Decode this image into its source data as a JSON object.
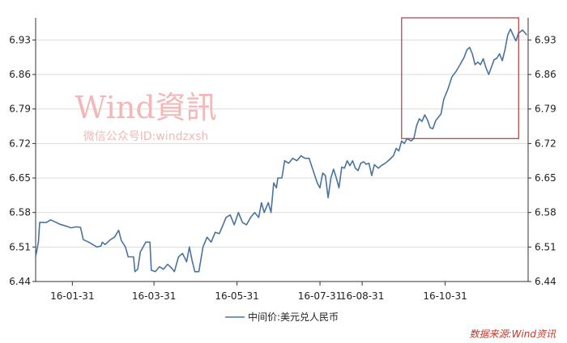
{
  "chart_data": {
    "type": "line",
    "series": [
      {
        "name": "中间价:美元兑人民币",
        "color": "#4a73a0",
        "points": [
          [
            "2016-01-04",
            6.49
          ],
          [
            "2016-01-06",
            6.52
          ],
          [
            "2016-01-07",
            6.56
          ],
          [
            "2016-01-12",
            6.56
          ],
          [
            "2016-01-15",
            6.565
          ],
          [
            "2016-01-19",
            6.56
          ],
          [
            "2016-01-22",
            6.556
          ],
          [
            "2016-01-27",
            6.552
          ],
          [
            "2016-01-30",
            6.549
          ],
          [
            "2016-02-03",
            6.551
          ],
          [
            "2016-02-06",
            6.55
          ],
          [
            "2016-02-08",
            6.525
          ],
          [
            "2016-02-12",
            6.52
          ],
          [
            "2016-02-18",
            6.51
          ],
          [
            "2016-02-21",
            6.512
          ],
          [
            "2016-02-22",
            6.52
          ],
          [
            "2016-02-24",
            6.515
          ],
          [
            "2016-02-28",
            6.525
          ],
          [
            "2016-03-02",
            6.53
          ],
          [
            "2016-03-05",
            6.544
          ],
          [
            "2016-03-07",
            6.523
          ],
          [
            "2016-03-10",
            6.51
          ],
          [
            "2016-03-12",
            6.49
          ],
          [
            "2016-03-16",
            6.49
          ],
          [
            "2016-03-17",
            6.46
          ],
          [
            "2016-03-19",
            6.465
          ],
          [
            "2016-03-21",
            6.5
          ],
          [
            "2016-03-25",
            6.52
          ],
          [
            "2016-03-28",
            6.52
          ],
          [
            "2016-03-29",
            6.463
          ],
          [
            "2016-04-01",
            6.46
          ],
          [
            "2016-04-04",
            6.47
          ],
          [
            "2016-04-07",
            6.465
          ],
          [
            "2016-04-10",
            6.475
          ],
          [
            "2016-04-13",
            6.467
          ],
          [
            "2016-04-15",
            6.46
          ],
          [
            "2016-04-18",
            6.49
          ],
          [
            "2016-04-21",
            6.497
          ],
          [
            "2016-04-24",
            6.48
          ],
          [
            "2016-04-26",
            6.51
          ],
          [
            "2016-04-28",
            6.483
          ],
          [
            "2016-04-30",
            6.46
          ],
          [
            "2016-05-03",
            6.46
          ],
          [
            "2016-05-06",
            6.51
          ],
          [
            "2016-05-09",
            6.53
          ],
          [
            "2016-05-12",
            6.52
          ],
          [
            "2016-05-15",
            6.54
          ],
          [
            "2016-05-18",
            6.537
          ],
          [
            "2016-05-20",
            6.55
          ],
          [
            "2016-05-23",
            6.57
          ],
          [
            "2016-05-26",
            6.575
          ],
          [
            "2016-05-29",
            6.555
          ],
          [
            "2016-06-01",
            6.58
          ],
          [
            "2016-06-04",
            6.56
          ],
          [
            "2016-06-07",
            6.555
          ],
          [
            "2016-06-10",
            6.57
          ],
          [
            "2016-06-13",
            6.58
          ],
          [
            "2016-06-16",
            6.57
          ],
          [
            "2016-06-18",
            6.6
          ],
          [
            "2016-06-20",
            6.58
          ],
          [
            "2016-06-23",
            6.6
          ],
          [
            "2016-06-25",
            6.58
          ],
          [
            "2016-06-27",
            6.64
          ],
          [
            "2016-06-29",
            6.63
          ],
          [
            "2016-06-30",
            6.65
          ],
          [
            "2016-07-03",
            6.65
          ],
          [
            "2016-07-05",
            6.685
          ],
          [
            "2016-07-08",
            6.68
          ],
          [
            "2016-07-11",
            6.69
          ],
          [
            "2016-07-14",
            6.685
          ],
          [
            "2016-07-17",
            6.695
          ],
          [
            "2016-07-20",
            6.69
          ],
          [
            "2016-07-23",
            6.69
          ],
          [
            "2016-07-26",
            6.665
          ],
          [
            "2016-07-29",
            6.64
          ],
          [
            "2016-07-31",
            6.63
          ],
          [
            "2016-08-02",
            6.66
          ],
          [
            "2016-08-04",
            6.655
          ],
          [
            "2016-08-06",
            6.61
          ],
          [
            "2016-08-08",
            6.65
          ],
          [
            "2016-08-10",
            6.668
          ],
          [
            "2016-08-12",
            6.65
          ],
          [
            "2016-08-14",
            6.63
          ],
          [
            "2016-08-16",
            6.672
          ],
          [
            "2016-08-18",
            6.67
          ],
          [
            "2016-08-20",
            6.685
          ],
          [
            "2016-08-22",
            6.675
          ],
          [
            "2016-08-24",
            6.685
          ],
          [
            "2016-08-26",
            6.67
          ],
          [
            "2016-08-28",
            6.665
          ],
          [
            "2016-08-30",
            6.68
          ],
          [
            "2016-09-01",
            6.683
          ],
          [
            "2016-09-03",
            6.678
          ],
          [
            "2016-09-05",
            6.68
          ],
          [
            "2016-09-07",
            6.655
          ],
          [
            "2016-09-09",
            6.677
          ],
          [
            "2016-09-12",
            6.67
          ],
          [
            "2016-09-14",
            6.675
          ],
          [
            "2016-09-17",
            6.68
          ],
          [
            "2016-09-20",
            6.687
          ],
          [
            "2016-09-23",
            6.695
          ],
          [
            "2016-09-25",
            6.71
          ],
          [
            "2016-09-27",
            6.705
          ],
          [
            "2016-09-29",
            6.725
          ],
          [
            "2016-10-01",
            6.72
          ],
          [
            "2016-10-03",
            6.73
          ],
          [
            "2016-10-06",
            6.725
          ],
          [
            "2016-10-08",
            6.73
          ],
          [
            "2016-10-10",
            6.756
          ],
          [
            "2016-10-12",
            6.77
          ],
          [
            "2016-10-14",
            6.765
          ],
          [
            "2016-10-16",
            6.778
          ],
          [
            "2016-10-18",
            6.768
          ],
          [
            "2016-10-20",
            6.752
          ],
          [
            "2016-10-22",
            6.75
          ],
          [
            "2016-10-24",
            6.766
          ],
          [
            "2016-10-26",
            6.773
          ],
          [
            "2016-10-28",
            6.78
          ],
          [
            "2016-10-30",
            6.81
          ],
          [
            "2016-11-02",
            6.83
          ],
          [
            "2016-11-05",
            6.855
          ],
          [
            "2016-11-08",
            6.866
          ],
          [
            "2016-11-11",
            6.88
          ],
          [
            "2016-11-14",
            6.895
          ],
          [
            "2016-11-16",
            6.91
          ],
          [
            "2016-11-18",
            6.915
          ],
          [
            "2016-11-20",
            6.902
          ],
          [
            "2016-11-22",
            6.88
          ],
          [
            "2016-11-24",
            6.885
          ],
          [
            "2016-11-26",
            6.88
          ],
          [
            "2016-11-28",
            6.892
          ],
          [
            "2016-11-30",
            6.874
          ],
          [
            "2016-12-02",
            6.86
          ],
          [
            "2016-12-04",
            6.875
          ],
          [
            "2016-12-06",
            6.89
          ],
          [
            "2016-12-08",
            6.893
          ],
          [
            "2016-12-10",
            6.902
          ],
          [
            "2016-12-12",
            6.888
          ],
          [
            "2016-12-14",
            6.91
          ],
          [
            "2016-12-16",
            6.94
          ],
          [
            "2016-12-18",
            6.952
          ],
          [
            "2016-12-20",
            6.94
          ],
          [
            "2016-12-22",
            6.928
          ],
          [
            "2016-12-24",
            6.944
          ],
          [
            "2016-12-27",
            6.95
          ],
          [
            "2016-12-30",
            6.94
          ]
        ]
      }
    ],
    "x_ticks": [
      {
        "date": "2016-01-31",
        "label": "16-01-31"
      },
      {
        "date": "2016-03-31",
        "label": "16-03-31"
      },
      {
        "date": "2016-05-31",
        "label": "16-05-31"
      },
      {
        "date": "2016-07-31",
        "label": "16-07-31"
      },
      {
        "date": "2016-08-31",
        "label": "16-08-31"
      },
      {
        "date": "2016-10-31",
        "label": "16-10-31"
      }
    ],
    "xlim": [
      "2016-01-04",
      "2016-12-31"
    ],
    "y_ticks": [
      6.44,
      6.51,
      6.58,
      6.65,
      6.72,
      6.79,
      6.86,
      6.93
    ],
    "ylim": [
      6.44,
      6.975
    ],
    "grid": true,
    "legend_position": "bottom",
    "highlight_box": {
      "x_start": "2016-09-29",
      "x_end": "2016-12-24",
      "y_low": 6.73,
      "y_high": 6.975,
      "color": "#b03a3a"
    },
    "watermark": {
      "brand": "Wind資訊",
      "subtitle": "微信公众号ID:windzxsh"
    },
    "source_note": "数据来源:Wind资讯"
  }
}
